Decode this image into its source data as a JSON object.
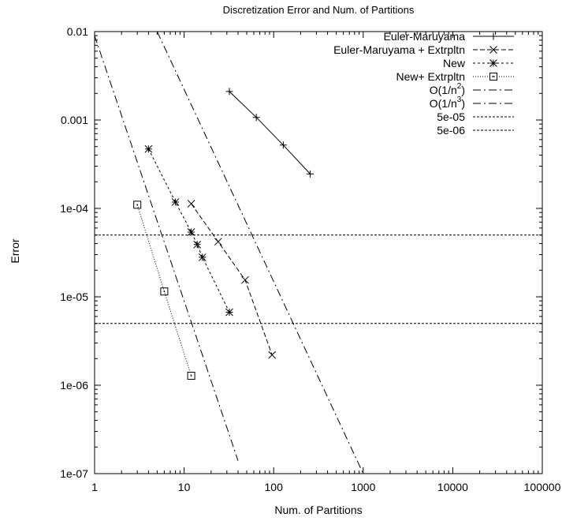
{
  "chart_data": {
    "type": "line",
    "title": "Discretization Error and Num. of Partitions",
    "xlabel": "Num. of Partitions",
    "ylabel": "Error",
    "x_scale": "log",
    "y_scale": "log",
    "xlim": [
      1,
      100000
    ],
    "ylim": [
      1e-07,
      0.01
    ],
    "x_ticks": [
      1,
      10,
      100,
      1000,
      10000,
      100000
    ],
    "x_tick_labels": [
      "1",
      "10",
      "100",
      "1000",
      "10000",
      "100000"
    ],
    "y_ticks": [
      1e-07,
      1e-06,
      1e-05,
      0.0001,
      0.001,
      0.01
    ],
    "y_tick_labels": [
      "1e-07",
      "1e-06",
      "1e-05",
      "1e-04",
      "0.001",
      "0.01"
    ],
    "grid": false,
    "legend_position": "top-right",
    "series": [
      {
        "name": "Euler-Maruyama",
        "x": [
          32,
          64,
          128,
          256
        ],
        "y": [
          0.0021,
          0.00107,
          0.00052,
          0.000245
        ],
        "dash": "solid",
        "marker": "plus"
      },
      {
        "name": "Euler-Maruyama + Extrpltn",
        "x": [
          12,
          24,
          48,
          96
        ],
        "y": [
          0.000113,
          4.2e-05,
          1.55e-05,
          2.2e-06
        ],
        "dash": "dashed",
        "marker": "x"
      },
      {
        "name": "New",
        "x": [
          4,
          8,
          12,
          14,
          16,
          32
        ],
        "y": [
          0.00047,
          0.000118,
          5.4e-05,
          3.9e-05,
          2.8e-05,
          6.7e-06
        ],
        "dash": "short-dash",
        "marker": "star"
      },
      {
        "name": "New+ Extrpltn",
        "x": [
          3,
          6,
          12
        ],
        "y": [
          0.00011,
          1.15e-05,
          1.28e-06
        ],
        "dash": "dotted",
        "marker": "square"
      },
      {
        "name": "O(1/n2)",
        "legend_text": "O(1/n",
        "legend_exponent": "2",
        "legend_suffix": ")",
        "x": [
          5,
          1000
        ],
        "y": [
          0.01,
          1e-07
        ],
        "dash": "dash-dot",
        "marker": "none"
      },
      {
        "name": "O(1/n3)",
        "legend_text": "O(1/n",
        "legend_exponent": "3",
        "legend_suffix": ")",
        "x": [
          1,
          40
        ],
        "y": [
          0.009,
          1.4e-07
        ],
        "dash": "dash-dot",
        "marker": "none"
      },
      {
        "name": "5e-05",
        "x": [
          1,
          100000
        ],
        "y": [
          5e-05,
          5e-05
        ],
        "dash": "dense-dash",
        "marker": "none"
      },
      {
        "name": "5e-06",
        "x": [
          1,
          100000
        ],
        "y": [
          5e-06,
          5e-06
        ],
        "dash": "dense-dash",
        "marker": "none"
      }
    ]
  }
}
